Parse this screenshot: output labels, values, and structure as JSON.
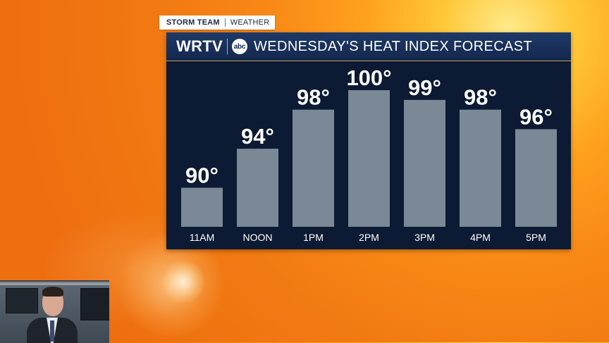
{
  "tag": {
    "brand": "STORM TEAM",
    "section": "WEATHER"
  },
  "header": {
    "logo": "WRTV",
    "network": "abc",
    "title": "WEDNESDAY'S HEAT INDEX FORECAST"
  },
  "colors": {
    "bar": "#7b8896",
    "panel": "#0c1a33",
    "header": "#1a3360",
    "text": "#ffffff"
  },
  "chart_data": {
    "type": "bar",
    "title": "WEDNESDAY'S HEAT INDEX FORECAST",
    "categories": [
      "11AM",
      "NOON",
      "1PM",
      "2PM",
      "3PM",
      "4PM",
      "5PM"
    ],
    "values": [
      90,
      94,
      98,
      100,
      99,
      98,
      96
    ],
    "value_labels": [
      "90°",
      "94°",
      "98°",
      "100°",
      "99°",
      "98°",
      "96°"
    ],
    "units": "°",
    "ylim": [
      86,
      100
    ],
    "grid": false,
    "legend": "none"
  },
  "presenter": {
    "icon": "presenter-video-feed"
  }
}
